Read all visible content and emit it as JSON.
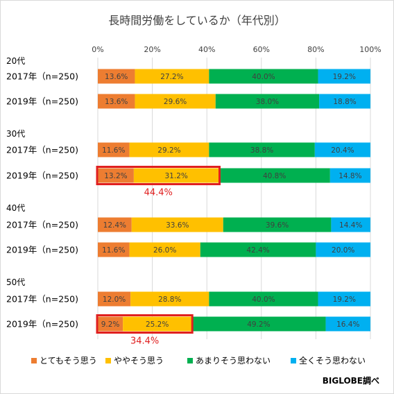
{
  "chart_data": {
    "type": "bar",
    "orientation": "horizontal",
    "stacked": true,
    "title": "長時間労働をしているか（年代別）",
    "xlim": [
      0,
      100
    ],
    "x_ticks": [
      "0%",
      "20%",
      "40%",
      "60%",
      "80%",
      "100%"
    ],
    "grid": true,
    "legend_position": "bottom",
    "series": [
      {
        "name": "とてもそう思う",
        "color": "#ed7d31"
      },
      {
        "name": "ややそう思う",
        "color": "#ffc000"
      },
      {
        "name": "あまりそう思わない",
        "color": "#00b050"
      },
      {
        "name": "全くそう思わない",
        "color": "#00b0f0"
      }
    ],
    "groups": [
      {
        "label": "20代",
        "rows": [
          {
            "label": "2017年（n=250)",
            "values": [
              13.6,
              27.2,
              40.0,
              19.2
            ],
            "labels": [
              "13.6%",
              "27.2%",
              "40.0%",
              "19.2%"
            ]
          },
          {
            "label": "2019年（n=250)",
            "values": [
              13.6,
              29.6,
              38.0,
              18.8
            ],
            "labels": [
              "13.6%",
              "29.6%",
              "38.0%",
              "18.8%"
            ]
          }
        ]
      },
      {
        "label": "30代",
        "rows": [
          {
            "label": "2017年（n=250)",
            "values": [
              11.6,
              29.2,
              38.8,
              20.4
            ],
            "labels": [
              "11.6%",
              "29.2%",
              "38.8%",
              "20.4%"
            ]
          },
          {
            "label": "2019年（n=250)",
            "values": [
              13.2,
              31.2,
              40.8,
              14.8
            ],
            "labels": [
              "13.2%",
              "31.2%",
              "40.8%",
              "14.8%"
            ],
            "highlight": "44.4%"
          }
        ]
      },
      {
        "label": "40代",
        "rows": [
          {
            "label": "2017年（n=250)",
            "values": [
              12.4,
              33.6,
              39.6,
              14.4
            ],
            "labels": [
              "12.4%",
              "33.6%",
              "39.6%",
              "14.4%"
            ]
          },
          {
            "label": "2019年（n=250)",
            "values": [
              11.6,
              26.0,
              42.4,
              20.0
            ],
            "labels": [
              "11.6%",
              "26.0%",
              "42.4%",
              "20.0%"
            ]
          }
        ]
      },
      {
        "label": "50代",
        "rows": [
          {
            "label": "2017年（n=250)",
            "values": [
              12.0,
              28.8,
              40.0,
              19.2
            ],
            "labels": [
              "12.0%",
              "28.8%",
              "40.0%",
              "19.2%"
            ]
          },
          {
            "label": "2019年（n=250)",
            "values": [
              9.2,
              25.2,
              49.2,
              16.4
            ],
            "labels": [
              "9.2%",
              "25.2%",
              "49.2%",
              "16.4%"
            ],
            "highlight": "34.4%"
          }
        ]
      }
    ],
    "highlight_color": "#e02020"
  },
  "source_note": "BIGLOBE調べ"
}
